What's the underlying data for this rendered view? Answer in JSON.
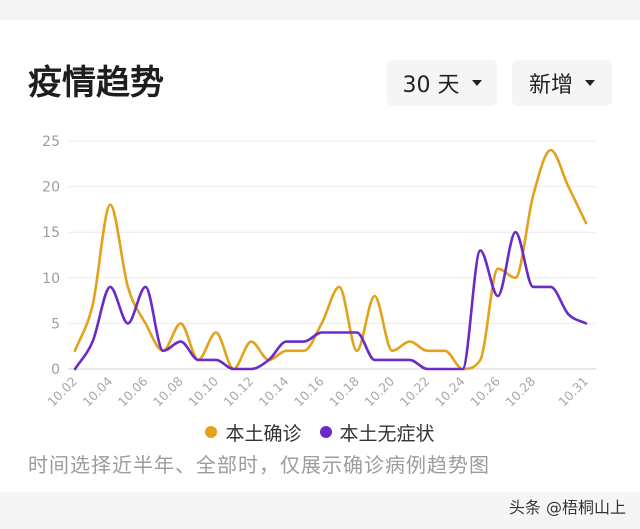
{
  "header": {
    "title": "疫情趋势",
    "range_select": {
      "value": "30 天",
      "icon": "caret-down-icon"
    },
    "metric_select": {
      "value": "新增",
      "icon": "caret-down-icon"
    }
  },
  "chart_data": {
    "type": "line",
    "smooth": true,
    "grid": true,
    "legend": "bottom",
    "ylim": [
      0,
      25
    ],
    "y_ticks": [
      0,
      5,
      10,
      15,
      20,
      25
    ],
    "x": [
      "10.02",
      "10.03",
      "10.04",
      "10.05",
      "10.06",
      "10.07",
      "10.08",
      "10.09",
      "10.10",
      "10.11",
      "10.12",
      "10.13",
      "10.14",
      "10.15",
      "10.16",
      "10.17",
      "10.18",
      "10.19",
      "10.20",
      "10.21",
      "10.22",
      "10.23",
      "10.24",
      "10.25",
      "10.26",
      "10.27",
      "10.28",
      "10.29",
      "10.30",
      "10.31"
    ],
    "x_ticks": [
      "10.02",
      "10.04",
      "10.06",
      "10.08",
      "10.10",
      "10.12",
      "10.14",
      "10.16",
      "10.18",
      "10.20",
      "10.22",
      "10.24",
      "10.26",
      "10.28",
      "10.31"
    ],
    "series": [
      {
        "name": "本土确诊",
        "color": "#E3A21A",
        "values": [
          2,
          7,
          18,
          9,
          5,
          2,
          5,
          1,
          4,
          0,
          3,
          1,
          2,
          2,
          5,
          9,
          2,
          8,
          2,
          3,
          2,
          2,
          0,
          1,
          11,
          10,
          19,
          24,
          20,
          16
        ]
      },
      {
        "name": "本土无症状",
        "color": "#6B2BC6",
        "values": [
          0,
          3,
          9,
          5,
          9,
          2,
          3,
          1,
          1,
          0,
          0,
          1,
          3,
          3,
          4,
          4,
          4,
          1,
          1,
          1,
          0,
          0,
          0,
          13,
          8,
          15,
          9,
          9,
          6,
          5
        ]
      }
    ]
  },
  "caption": "时间选择近半年、全部时，仅展示确诊病例趋势图",
  "watermark": "头条 @梧桐山上"
}
